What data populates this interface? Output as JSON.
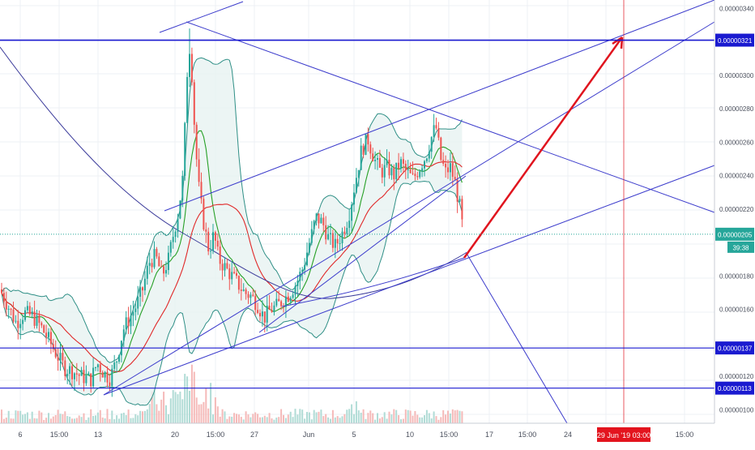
{
  "chart_data": {
    "type": "candlestick",
    "x_axis": {
      "tick_labels": [
        "6",
        "15:00",
        "13",
        "20",
        "15:00",
        "27",
        "Jun",
        "5",
        "10",
        "15:00",
        "17",
        "15:00",
        "24",
        "15:00",
        "15:00"
      ],
      "crosshair_label": "29 Jun '19   03:00"
    },
    "y_axis": {
      "ylim": [
        9.2e-07,
        3.45e-06
      ],
      "tick_labels": [
        "0.00000340",
        "0.00000300",
        "0.00000280",
        "0.00000260",
        "0.00000240",
        "0.00000220",
        "0.00000180",
        "0.00000160",
        "0.00000120",
        "0.00000100"
      ],
      "tick_values": [
        3.4e-06,
        3e-06,
        2.8e-06,
        2.6e-06,
        2.4e-06,
        2.2e-06,
        1.8e-06,
        1.6e-06,
        1.2e-06,
        1e-06
      ]
    },
    "price_lines": [
      {
        "label": "0.00000321",
        "value": 3.21e-06,
        "color": "#1a1ad0"
      },
      {
        "label": "0.00000137",
        "value": 1.37e-06,
        "color": "#1a1ad0"
      },
      {
        "label": "0.00000113",
        "value": 1.13e-06,
        "color": "#1a1ad0"
      }
    ],
    "last_price": {
      "label": "0.00000205",
      "value": 2.05e-06,
      "countdown": "39:38",
      "color": "#26a69a"
    },
    "trendlines_color": "#3c3ccc",
    "forecast_arrow_color": "#e0141e",
    "colors": {
      "up": "#26a69a",
      "down": "#ef5350",
      "ma_fast": "#26a026",
      "ma_slow": "#e02828",
      "band": "#2f8f86",
      "band_fill": "#e7f2f1",
      "long_ma": "#3a3a9a"
    }
  }
}
